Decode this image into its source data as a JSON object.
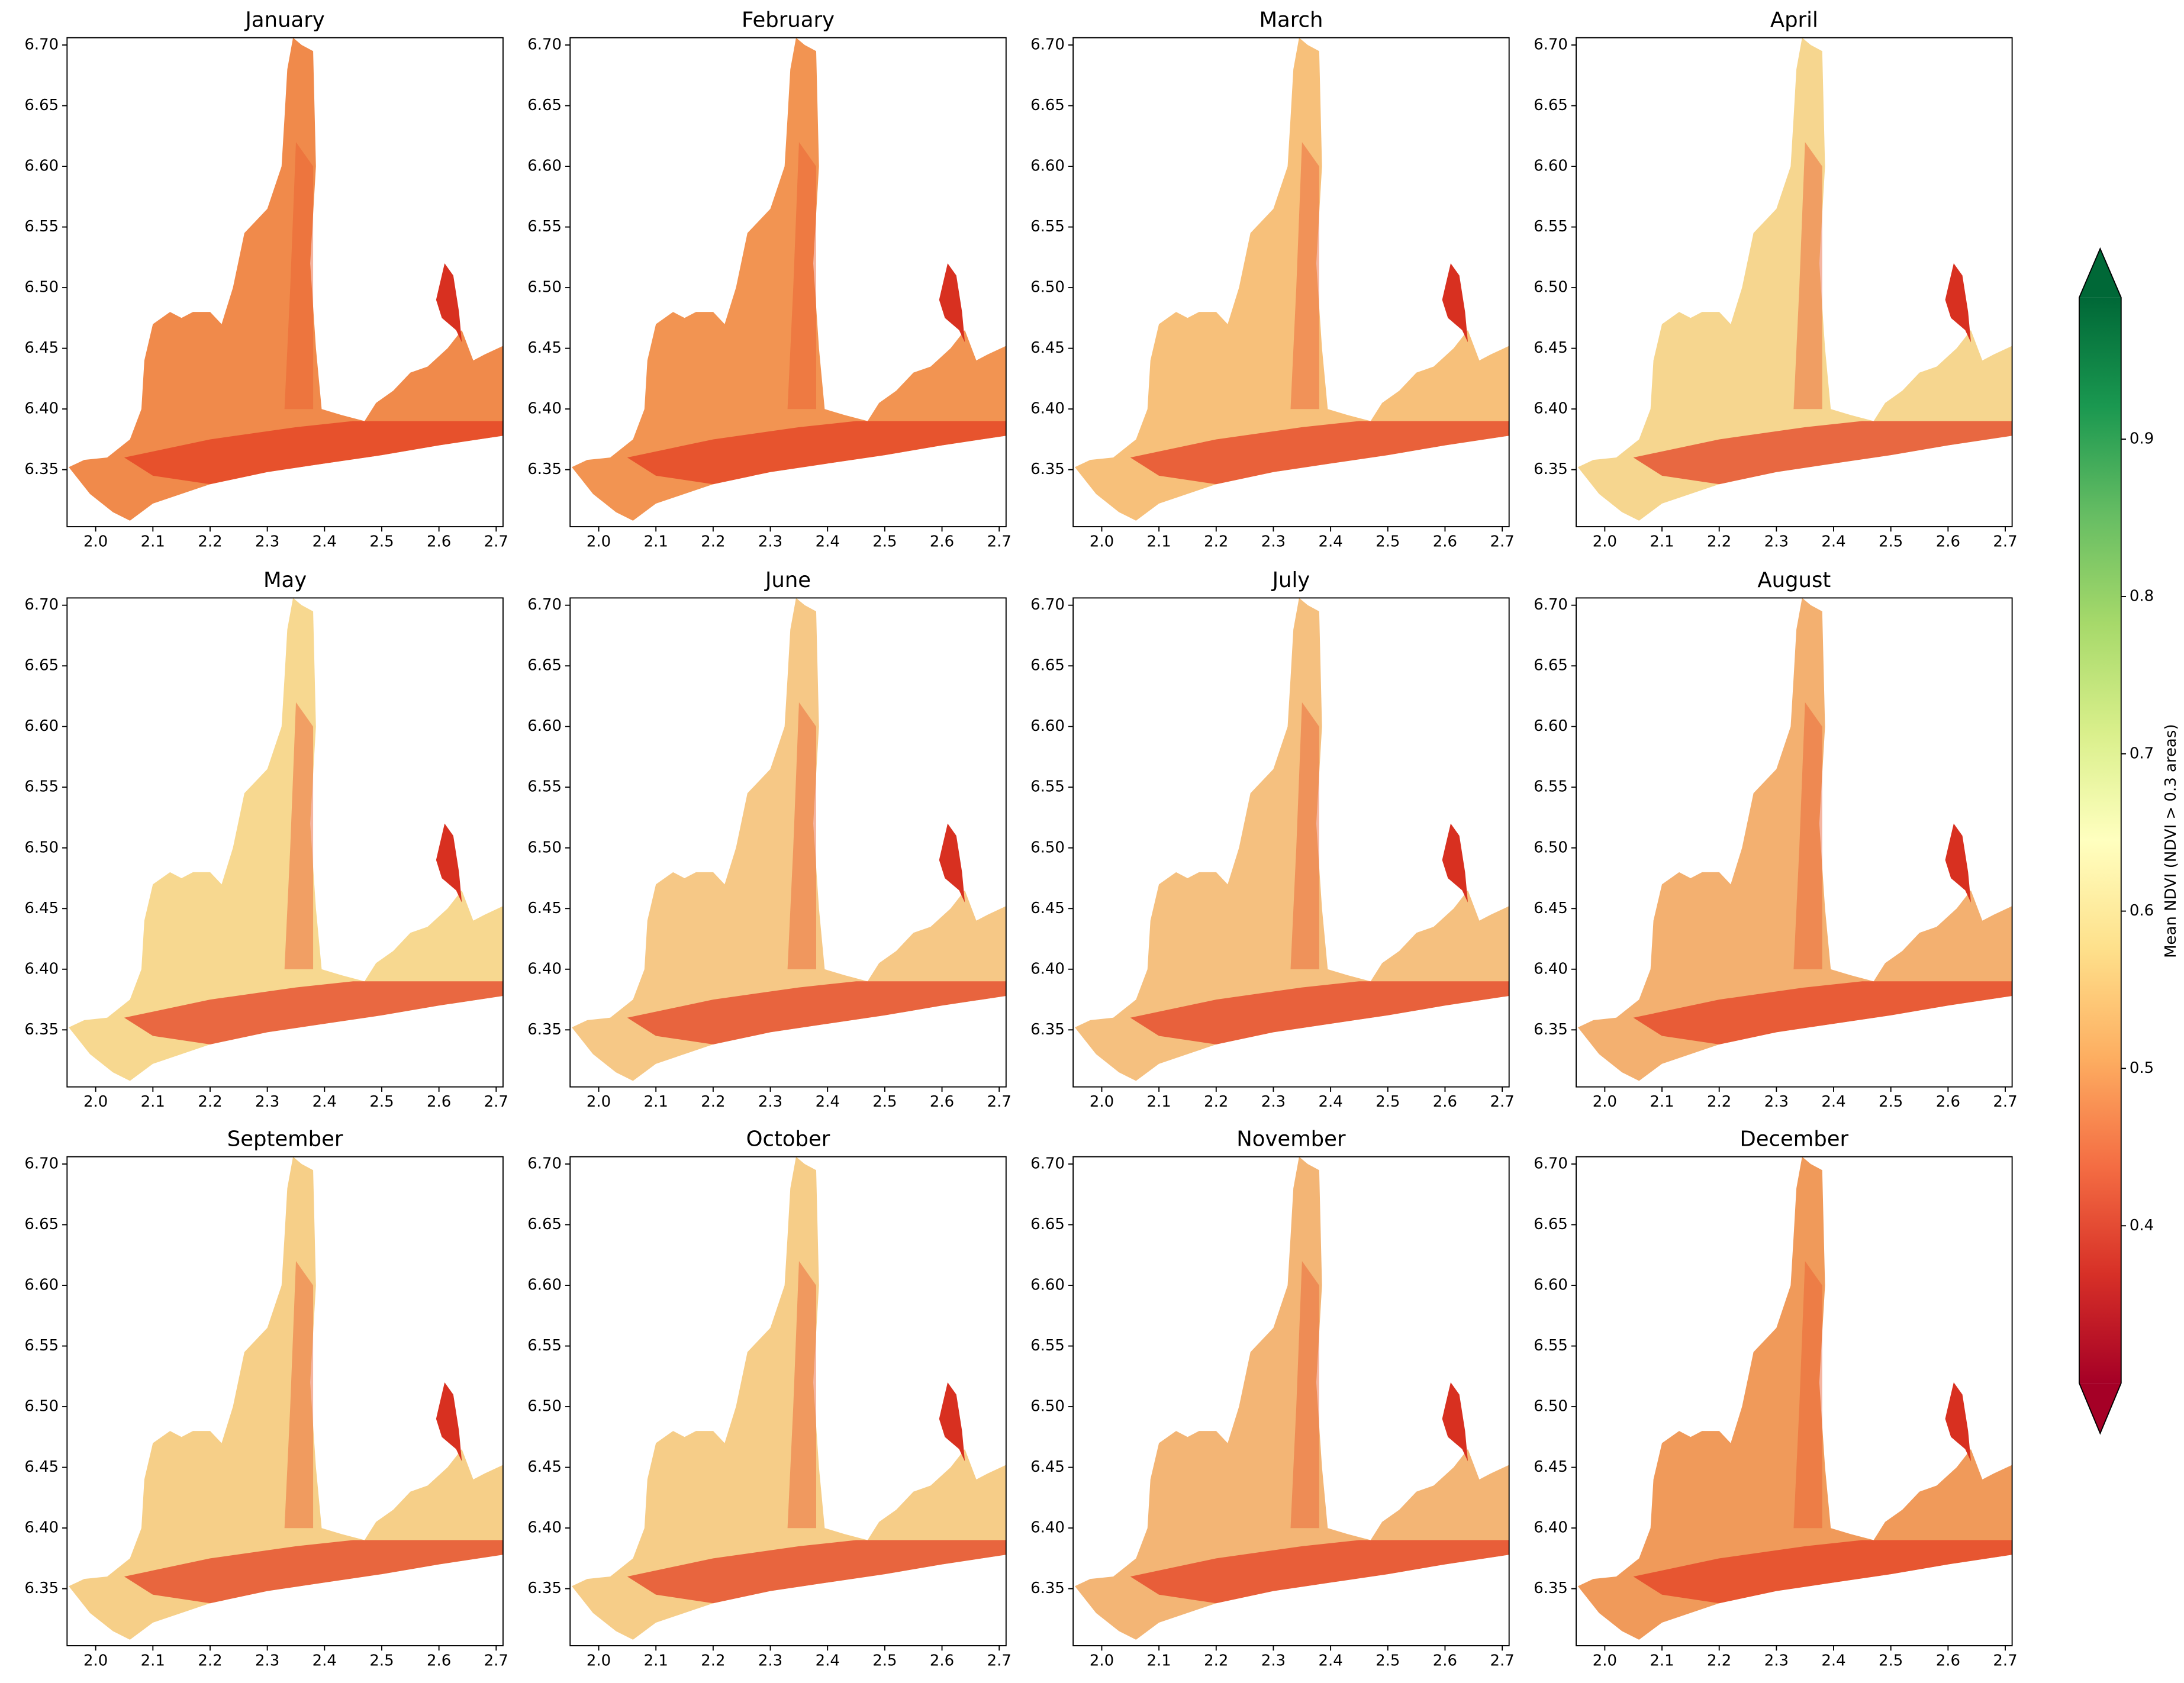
{
  "chart_data": {
    "type": "map-grid",
    "panels": [
      {
        "title": "January",
        "color": "#f08a4b"
      },
      {
        "title": "February",
        "color": "#f29452"
      },
      {
        "title": "March",
        "color": "#f7c07a"
      },
      {
        "title": "April",
        "color": "#f6d68f"
      },
      {
        "title": "May",
        "color": "#f7d890"
      },
      {
        "title": "June",
        "color": "#f6c886"
      },
      {
        "title": "July",
        "color": "#f5c07f"
      },
      {
        "title": "August",
        "color": "#f3b070"
      },
      {
        "title": "September",
        "color": "#f6cf88"
      },
      {
        "title": "October",
        "color": "#f6cd88"
      },
      {
        "title": "November",
        "color": "#f3b575"
      },
      {
        "title": "December",
        "color": "#f09a5a"
      }
    ],
    "xlim": [
      1.95,
      2.712
    ],
    "ylim": [
      6.303,
      6.706
    ],
    "xticks": [
      {
        "value": 2,
        "label": "2.0"
      },
      2.1,
      2.2,
      2.3,
      2.4,
      2.5,
      2.6,
      2.7
    ],
    "yticks": [
      6.35,
      {
        "value": 6.4,
        "label": "6.40"
      },
      6.45,
      {
        "value": 6.5,
        "label": "6.50"
      },
      6.55,
      {
        "value": 6.6,
        "label": "6.60"
      },
      6.65,
      {
        "value": 6.7,
        "label": "6.70"
      }
    ],
    "colorbar": {
      "label": "Mean NDVI (NDVI > 0.3 areas)",
      "colormap": "RdYlGn",
      "lim": [
        0.3,
        0.99
      ],
      "ticks": [
        0.4,
        0.5,
        0.6,
        0.7,
        0.8,
        0.9
      ],
      "extend": "both"
    }
  }
}
